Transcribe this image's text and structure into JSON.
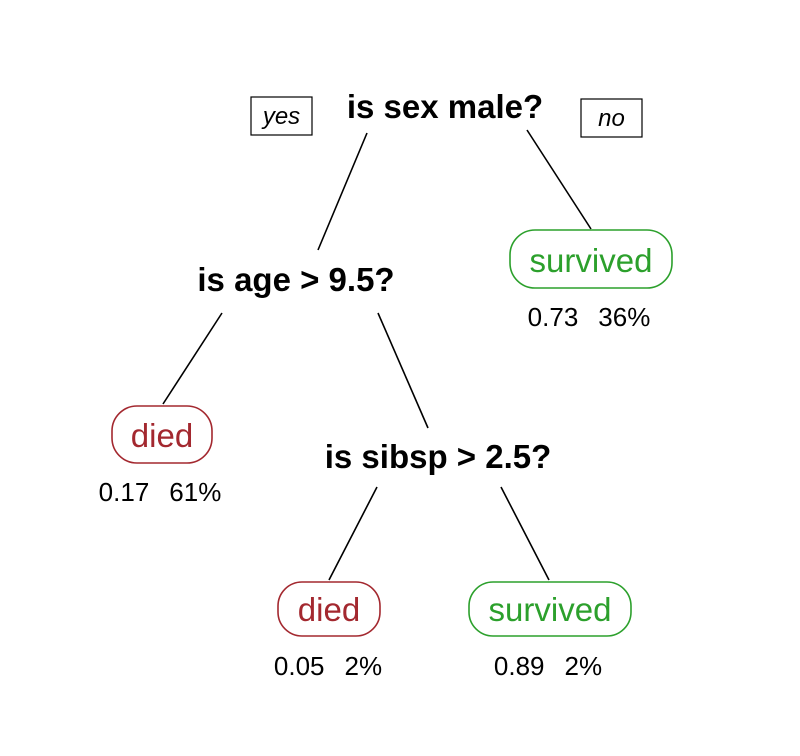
{
  "tree": {
    "root": {
      "question": "is sex male?",
      "yes_label": "yes",
      "no_label": "no"
    },
    "age_split": {
      "question": "is age > 9.5?"
    },
    "sibsp_split": {
      "question": "is sibsp > 2.5?"
    },
    "leaves": [
      {
        "id": "female",
        "label": "survived",
        "value": "0.73",
        "percent": "36%",
        "color": "#2ca02c"
      },
      {
        "id": "male-older",
        "label": "died",
        "value": "0.17",
        "percent": "61%",
        "color": "#a3282f"
      },
      {
        "id": "boy-many-sibs",
        "label": "died",
        "value": "0.05",
        "percent": "2%",
        "color": "#a3282f"
      },
      {
        "id": "boy-few-sibs",
        "label": "survived",
        "value": "0.89",
        "percent": "2%",
        "color": "#2ca02c"
      }
    ]
  }
}
